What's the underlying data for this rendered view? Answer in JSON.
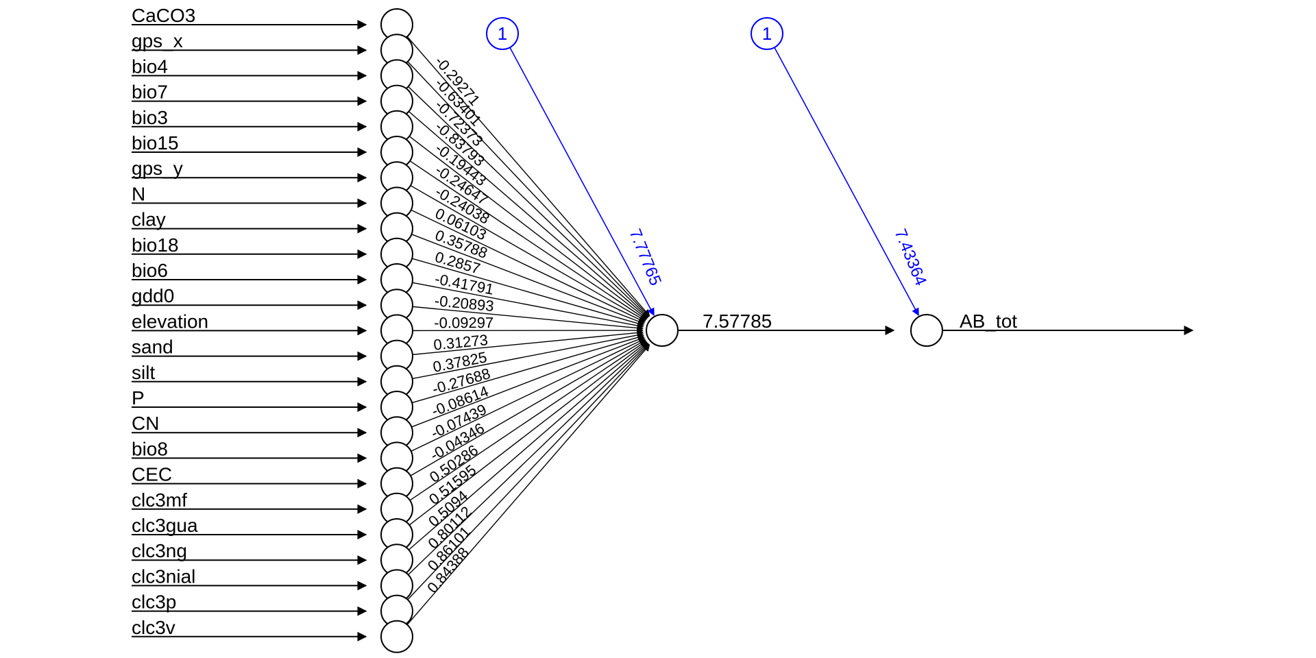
{
  "diagram": {
    "inputs": [
      {
        "name": "CaCO3",
        "weight": "-0.29271"
      },
      {
        "name": "gps_x",
        "weight": "-0.63401"
      },
      {
        "name": "bio4",
        "weight": "-0.72373"
      },
      {
        "name": "bio7",
        "weight": "-0.83793"
      },
      {
        "name": "bio3",
        "weight": "-0.19443"
      },
      {
        "name": "bio15",
        "weight": "-0.24647"
      },
      {
        "name": "gps_y",
        "weight": "-0.24038"
      },
      {
        "name": "N",
        "weight": "0.06103"
      },
      {
        "name": "clay",
        "weight": "0.35788"
      },
      {
        "name": "bio18",
        "weight": "0.2857"
      },
      {
        "name": "bio6",
        "weight": "-0.41791"
      },
      {
        "name": "gdd0",
        "weight": "-0.20893"
      },
      {
        "name": "elevation",
        "weight": "-0.09297"
      },
      {
        "name": "sand",
        "weight": "0.31273"
      },
      {
        "name": "silt",
        "weight": "0.37825"
      },
      {
        "name": "P",
        "weight": "-0.27688"
      },
      {
        "name": "CN",
        "weight": "-0.08614"
      },
      {
        "name": "bio8",
        "weight": "-0.07439"
      },
      {
        "name": "CEC",
        "weight": "-0.04346"
      },
      {
        "name": "clc3mf",
        "weight": "0.50286"
      },
      {
        "name": "clc3gua",
        "weight": "0.51595"
      },
      {
        "name": "clc3ng",
        "weight": "0.5094"
      },
      {
        "name": "clc3nial",
        "weight": "0.80112"
      },
      {
        "name": "clc3p",
        "weight": "0.86101"
      },
      {
        "name": "clc3v",
        "weight": "0.84388"
      }
    ],
    "hidden_weight": "7.57785",
    "output_name": "AB_tot",
    "bias_hidden": {
      "label": "1",
      "weight": "7.77765"
    },
    "bias_output": {
      "label": "1",
      "weight": "7.43364"
    },
    "colors": {
      "edge": "#000000",
      "bias": "#0000ff"
    }
  }
}
